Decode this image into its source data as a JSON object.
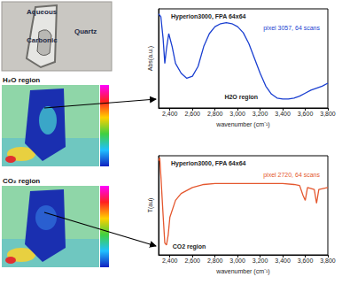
{
  "photo": {
    "labels": [
      "Aqueous",
      "Carbonic",
      "Quartz"
    ]
  },
  "maps": [
    {
      "label": "H₂O region"
    },
    {
      "label": "CO₂ region"
    }
  ],
  "chart_data": [
    {
      "type": "line",
      "title": "Hyperion3000, FPA 64x64",
      "subtitle": "pixel 3057, 64 scans",
      "annotation": "H2O region",
      "x_label": "wavenumber (cm⁻¹)",
      "y_label": "Abs(a.u.)",
      "x": [
        2300,
        2320,
        2340,
        2355,
        2370,
        2390,
        2420,
        2450,
        2500,
        2550,
        2600,
        2650,
        2700,
        2750,
        2800,
        2850,
        2900,
        2950,
        3000,
        3050,
        3100,
        3150,
        3200,
        3250,
        3300,
        3350,
        3400,
        3450,
        3500,
        3550,
        3600,
        3650,
        3700,
        3750,
        3800
      ],
      "values": [
        0.95,
        0.92,
        0.7,
        0.45,
        0.6,
        0.75,
        0.62,
        0.45,
        0.35,
        0.3,
        0.32,
        0.42,
        0.62,
        0.75,
        0.82,
        0.85,
        0.86,
        0.85,
        0.82,
        0.76,
        0.65,
        0.5,
        0.35,
        0.22,
        0.14,
        0.1,
        0.09,
        0.09,
        0.1,
        0.12,
        0.15,
        0.18,
        0.2,
        0.22,
        0.25
      ],
      "color": "#1a3fd1",
      "xlim": [
        2300,
        3800
      ],
      "xticks": [
        2400,
        2600,
        2800,
        3000,
        3200,
        3400,
        3600,
        3800
      ],
      "ylim": [
        0,
        1
      ],
      "grid": false,
      "tick_labels": "x"
    },
    {
      "type": "line",
      "title": "Hyperion3000, FPA 64x64",
      "subtitle": "pixel 2720, 64 scans",
      "annotation": "CO2 region",
      "x_label": "wavenumber (cm⁻¹)",
      "y_label": "T(au)",
      "x": [
        2300,
        2310,
        2320,
        2340,
        2355,
        2370,
        2385,
        2400,
        2450,
        2500,
        2600,
        2700,
        2800,
        2900,
        3000,
        3100,
        3200,
        3300,
        3400,
        3500,
        3550,
        3580,
        3600,
        3620,
        3680,
        3700,
        3720,
        3800
      ],
      "values": [
        0.95,
        0.98,
        0.8,
        0.4,
        0.12,
        0.1,
        0.2,
        0.38,
        0.55,
        0.62,
        0.68,
        0.71,
        0.72,
        0.72,
        0.72,
        0.72,
        0.72,
        0.72,
        0.72,
        0.71,
        0.7,
        0.6,
        0.55,
        0.68,
        0.66,
        0.52,
        0.66,
        0.68
      ],
      "color": "#e4572e",
      "xlim": [
        2300,
        3800
      ],
      "xticks": [
        2400,
        2600,
        2800,
        3000,
        3200,
        3400,
        3600,
        3800
      ],
      "ylim": [
        0,
        1
      ],
      "grid": false,
      "tick_labels": "x"
    }
  ]
}
